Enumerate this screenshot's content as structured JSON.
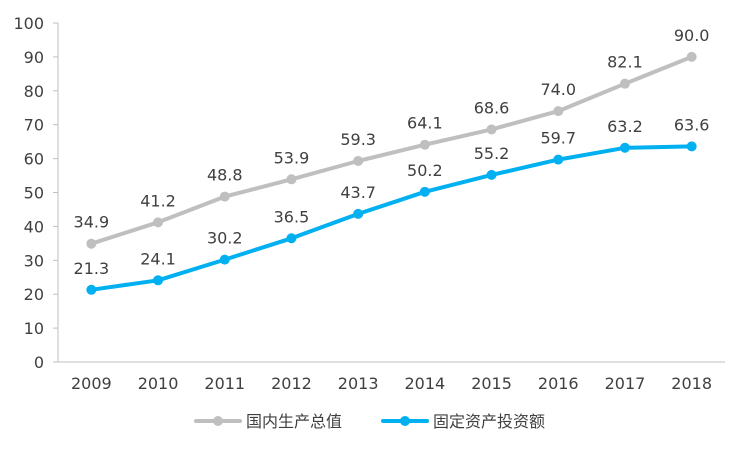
{
  "chart_data": {
    "type": "line",
    "categories": [
      "2009",
      "2010",
      "2011",
      "2012",
      "2013",
      "2014",
      "2015",
      "2016",
      "2017",
      "2018"
    ],
    "series": [
      {
        "name": "国内生产总值",
        "color": "#bfbfbf",
        "values": [
          34.9,
          41.2,
          48.8,
          53.9,
          59.3,
          64.1,
          68.6,
          74.0,
          82.1,
          90.0
        ],
        "labels": [
          "34.9",
          "41.2",
          "48.8",
          "53.9",
          "59.3",
          "64.1",
          "68.6",
          "74.0",
          "82.1",
          "90.0"
        ]
      },
      {
        "name": "固定资产投资额",
        "color": "#00b0f0",
        "values": [
          21.3,
          24.1,
          30.2,
          36.5,
          43.7,
          50.2,
          55.2,
          59.7,
          63.2,
          63.6
        ],
        "labels": [
          "21.3",
          "24.1",
          "30.2",
          "36.5",
          "43.7",
          "50.2",
          "55.2",
          "59.7",
          "63.2",
          "63.6"
        ]
      }
    ],
    "ylim": [
      0,
      100
    ],
    "yticks": [
      "0",
      "10",
      "20",
      "30",
      "40",
      "50",
      "60",
      "70",
      "80",
      "90",
      "100"
    ],
    "title": "",
    "xlabel": "",
    "ylabel": "",
    "grid": false,
    "legend_position": "bottom"
  }
}
